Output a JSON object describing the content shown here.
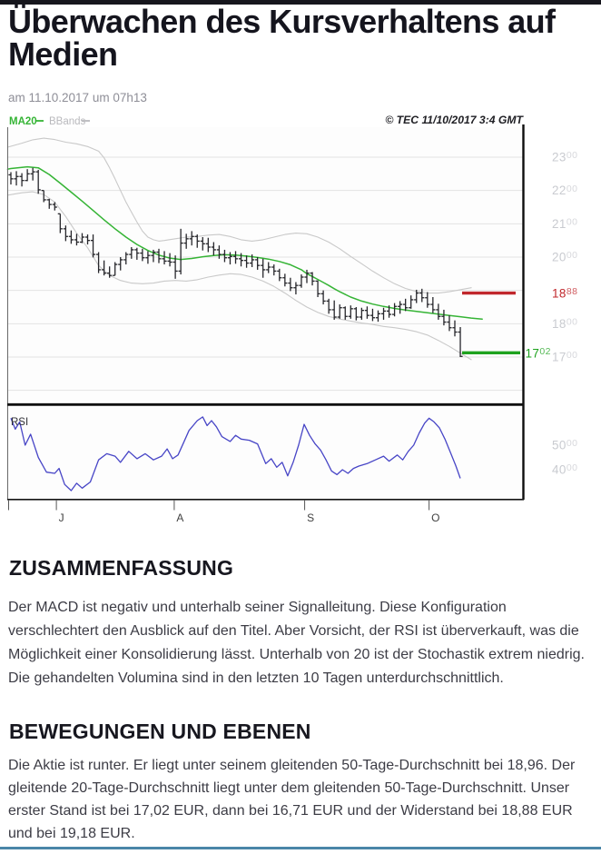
{
  "page": {
    "title": "Überwachen des Kursverhaltens auf Medien",
    "date_line": "am 11.10.2017 um 07h13",
    "top_bar_color": "#16161d",
    "bottom_rule_color": "#4a86a8"
  },
  "sections": [
    {
      "heading": "ZUSAMMENFASSUNG",
      "body": "Der MACD ist negativ und unterhalb seiner Signalleitung. Diese Konfiguration verschlechtert den Ausblick auf den Titel. Aber Vorsicht, der RSI ist überverkauft, was die Möglichkeit einer Konsolidierung lässt. Unterhalb von 20 ist der Stochastik extrem niedrig. Die gehandelten Volumina sind in den letzten 10 Tagen unterdurchschnittlich."
    },
    {
      "heading": "BEWEGUNGEN UND EBENEN",
      "body": "Die Aktie ist runter. Er liegt unter seinem gleitenden 50-Tage-Durchschnitt bei 18,96. Der gleitende 20-Tage-Durchschnitt liegt unter dem gleitenden 50-Tage-Durchschnitt. Unser erster Stand ist bei 17,02 EUR, dann bei 16,71 EUR und der Widerstand bei 18,88 EUR und bei 19,18 EUR."
    }
  ],
  "chart_data": {
    "type": "candlestick",
    "watermark": "© TEC 11/10/2017 3:4 GMT",
    "legend": [
      {
        "label": "MA20",
        "color": "#35b435"
      },
      {
        "label": "BBands",
        "color": "#b9b9bd"
      }
    ],
    "axis_note": "prices in EUR cents (1702 = 17,02 EUR)",
    "ylim": [
      1560,
      2425
    ],
    "gridlines": [
      2300,
      2200,
      2100,
      2000,
      1900,
      1800,
      1700,
      1600
    ],
    "price_labels": [
      2300,
      2200,
      2100,
      2000,
      1800,
      1700
    ],
    "price_label_color": "#c9cbd0",
    "bar_color": "#26262b",
    "band_color": "#c9c9c9",
    "grid_color": "#e2e2e2",
    "resistance": {
      "value": 1888,
      "label": "1888",
      "color": "#c0272c"
    },
    "support": {
      "value": 1702,
      "label": "1702",
      "color": "#1ea21e"
    },
    "x_ticks": [
      {
        "label": "J",
        "i": 8.3
      },
      {
        "label": "A",
        "i": 29.8
      },
      {
        "label": "S",
        "i": 53.6
      },
      {
        "label": "O",
        "i": 76.3
      }
    ],
    "bars_hlc": [
      [
        2255,
        2218,
        2235
      ],
      [
        2258,
        2215,
        2242
      ],
      [
        2252,
        2212,
        2230
      ],
      [
        2264,
        2228,
        2250
      ],
      [
        2268,
        2230,
        2256
      ],
      [
        2262,
        2190,
        2202
      ],
      [
        2200,
        2165,
        2172
      ],
      [
        2175,
        2145,
        2158
      ],
      [
        2165,
        2140,
        2150
      ],
      [
        2130,
        2072,
        2085
      ],
      [
        2095,
        2048,
        2062
      ],
      [
        2080,
        2040,
        2052
      ],
      [
        2070,
        2035,
        2045
      ],
      [
        2072,
        2042,
        2060
      ],
      [
        2068,
        2038,
        2050
      ],
      [
        2068,
        1999,
        2008
      ],
      [
        2015,
        1952,
        1962
      ],
      [
        1990,
        1945,
        1952
      ],
      [
        1972,
        1938,
        1945
      ],
      [
        1985,
        1945,
        1978
      ],
      [
        2000,
        1960,
        1992
      ],
      [
        2015,
        1978,
        2008
      ],
      [
        2030,
        1995,
        2022
      ],
      [
        2028,
        1992,
        2012
      ],
      [
        2025,
        1988,
        1998
      ],
      [
        2018,
        1980,
        2005
      ],
      [
        2022,
        1985,
        2015
      ],
      [
        2025,
        1982,
        1995
      ],
      [
        2018,
        1978,
        1988
      ],
      [
        2012,
        1972,
        1985
      ],
      [
        2005,
        1935,
        1958
      ],
      [
        2085,
        1948,
        2042
      ],
      [
        2070,
        2025,
        2055
      ],
      [
        2078,
        2035,
        2062
      ],
      [
        2068,
        2028,
        2048
      ],
      [
        2060,
        2020,
        2040
      ],
      [
        2058,
        2015,
        2030
      ],
      [
        2045,
        2005,
        2022
      ],
      [
        2035,
        1995,
        2008
      ],
      [
        2022,
        1985,
        1998
      ],
      [
        2015,
        1978,
        2002
      ],
      [
        2018,
        1980,
        1995
      ],
      [
        2012,
        1972,
        1990
      ],
      [
        2005,
        1968,
        1982
      ],
      [
        2008,
        1970,
        1992
      ],
      [
        2000,
        1962,
        1975
      ],
      [
        1995,
        1938,
        1962
      ],
      [
        1985,
        1952,
        1970
      ],
      [
        1978,
        1945,
        1958
      ],
      [
        1965,
        1928,
        1938
      ],
      [
        1950,
        1912,
        1922
      ],
      [
        1938,
        1898,
        1908
      ],
      [
        1925,
        1888,
        1915
      ],
      [
        1948,
        1908,
        1940
      ],
      [
        1962,
        1922,
        1952
      ],
      [
        1955,
        1915,
        1928
      ],
      [
        1930,
        1880,
        1890
      ],
      [
        1900,
        1858,
        1868
      ],
      [
        1875,
        1830,
        1842
      ],
      [
        1870,
        1812,
        1820
      ],
      [
        1858,
        1815,
        1848
      ],
      [
        1852,
        1812,
        1822
      ],
      [
        1855,
        1815,
        1845
      ],
      [
        1850,
        1810,
        1820
      ],
      [
        1848,
        1812,
        1840
      ],
      [
        1852,
        1815,
        1825
      ],
      [
        1845,
        1808,
        1818
      ],
      [
        1840,
        1806,
        1830
      ],
      [
        1848,
        1812,
        1838
      ],
      [
        1855,
        1818,
        1828
      ],
      [
        1862,
        1822,
        1852
      ],
      [
        1868,
        1830,
        1858
      ],
      [
        1875,
        1838,
        1848
      ],
      [
        1885,
        1845,
        1872
      ],
      [
        1902,
        1862,
        1892
      ],
      [
        1905,
        1865,
        1878
      ],
      [
        1895,
        1848,
        1858
      ],
      [
        1880,
        1832,
        1842
      ],
      [
        1860,
        1812,
        1822
      ],
      [
        1842,
        1795,
        1805
      ],
      [
        1825,
        1778,
        1788
      ],
      [
        1810,
        1762,
        1775
      ],
      [
        1790,
        1700,
        1702
      ]
    ],
    "ma20": [
      [
        -0.6,
        2264
      ],
      [
        0,
        2266
      ],
      [
        3,
        2271
      ],
      [
        5,
        2268
      ],
      [
        7,
        2248
      ],
      [
        9,
        2222
      ],
      [
        11,
        2195
      ],
      [
        13,
        2168
      ],
      [
        15,
        2140
      ],
      [
        17,
        2112
      ],
      [
        19,
        2085
      ],
      [
        21,
        2060
      ],
      [
        23,
        2038
      ],
      [
        25,
        2020
      ],
      [
        27,
        2006
      ],
      [
        29,
        1997
      ],
      [
        31,
        1993
      ],
      [
        33,
        1996
      ],
      [
        35,
        2001
      ],
      [
        37,
        2005
      ],
      [
        39,
        2007
      ],
      [
        41,
        2006
      ],
      [
        43,
        2003
      ],
      [
        45,
        1999
      ],
      [
        47,
        1994
      ],
      [
        49,
        1987
      ],
      [
        51,
        1977
      ],
      [
        53,
        1962
      ],
      [
        54,
        1950
      ],
      [
        55,
        1942
      ],
      [
        56,
        1933
      ],
      [
        57,
        1924
      ],
      [
        58,
        1915
      ],
      [
        59,
        1905
      ],
      [
        60,
        1896
      ],
      [
        61,
        1888
      ],
      [
        62,
        1880
      ],
      [
        64,
        1868
      ],
      [
        66,
        1859
      ],
      [
        68,
        1852
      ],
      [
        70,
        1846
      ],
      [
        72,
        1841
      ],
      [
        74,
        1837
      ],
      [
        76,
        1833
      ],
      [
        78,
        1829
      ],
      [
        80,
        1825
      ],
      [
        82,
        1821
      ],
      [
        84,
        1817
      ],
      [
        86,
        1814
      ]
    ],
    "bb_upper": [
      [
        -0.6,
        2330
      ],
      [
        2,
        2342
      ],
      [
        4,
        2352
      ],
      [
        6,
        2357
      ],
      [
        8,
        2353
      ],
      [
        10,
        2345
      ],
      [
        12,
        2340
      ],
      [
        14,
        2332
      ],
      [
        16,
        2318
      ],
      [
        17,
        2298
      ],
      [
        18,
        2268
      ],
      [
        19,
        2235
      ],
      [
        20,
        2200
      ],
      [
        21,
        2165
      ],
      [
        22,
        2135
      ],
      [
        23,
        2105
      ],
      [
        24,
        2078
      ],
      [
        25,
        2060
      ],
      [
        26,
        2052
      ],
      [
        27,
        2048
      ],
      [
        28,
        2050
      ],
      [
        30,
        2055
      ],
      [
        32,
        2060
      ],
      [
        34,
        2062
      ],
      [
        36,
        2066
      ],
      [
        38,
        2068
      ],
      [
        40,
        2062
      ],
      [
        42,
        2052
      ],
      [
        44,
        2048
      ],
      [
        46,
        2052
      ],
      [
        48,
        2060
      ],
      [
        50,
        2068
      ],
      [
        52,
        2072
      ],
      [
        54,
        2070
      ],
      [
        56,
        2060
      ],
      [
        58,
        2045
      ],
      [
        60,
        2025
      ],
      [
        62,
        2002
      ],
      [
        64,
        1980
      ],
      [
        66,
        1958
      ],
      [
        68,
        1938
      ],
      [
        70,
        1920
      ],
      [
        72,
        1906
      ],
      [
        74,
        1897
      ],
      [
        76,
        1892
      ],
      [
        78,
        1892
      ],
      [
        80,
        1896
      ],
      [
        82,
        1902
      ],
      [
        84,
        1908
      ]
    ],
    "bb_lower": [
      [
        -0.6,
        2186
      ],
      [
        2,
        2193
      ],
      [
        4,
        2196
      ],
      [
        6,
        2188
      ],
      [
        8,
        2165
      ],
      [
        10,
        2122
      ],
      [
        12,
        2072
      ],
      [
        14,
        2028
      ],
      [
        16,
        1975
      ],
      [
        18,
        1945
      ],
      [
        20,
        1930
      ],
      [
        22,
        1922
      ],
      [
        24,
        1920
      ],
      [
        26,
        1922
      ],
      [
        28,
        1928
      ],
      [
        30,
        1930
      ],
      [
        32,
        1928
      ],
      [
        34,
        1932
      ],
      [
        36,
        1940
      ],
      [
        38,
        1946
      ],
      [
        40,
        1950
      ],
      [
        42,
        1948
      ],
      [
        44,
        1940
      ],
      [
        46,
        1928
      ],
      [
        48,
        1912
      ],
      [
        50,
        1892
      ],
      [
        52,
        1870
      ],
      [
        54,
        1850
      ],
      [
        56,
        1834
      ],
      [
        58,
        1822
      ],
      [
        60,
        1814
      ],
      [
        62,
        1808
      ],
      [
        64,
        1802
      ],
      [
        66,
        1798
      ],
      [
        68,
        1792
      ],
      [
        70,
        1788
      ],
      [
        72,
        1783
      ],
      [
        74,
        1776
      ],
      [
        76,
        1766
      ],
      [
        78,
        1750
      ],
      [
        80,
        1732
      ],
      [
        82,
        1712
      ],
      [
        84,
        1692
      ]
    ],
    "rsi": {
      "label": "RSI",
      "color": "#4745c6",
      "axis_labels": [
        50,
        40
      ],
      "points": [
        [
          0,
          61
        ],
        [
          0.8,
          56.5
        ],
        [
          1.6,
          59.5
        ],
        [
          2.6,
          50
        ],
        [
          3.6,
          54.5
        ],
        [
          5,
          45
        ],
        [
          6.5,
          39
        ],
        [
          8,
          38.5
        ],
        [
          8.8,
          40.5
        ],
        [
          9.8,
          34
        ],
        [
          11,
          31.5
        ],
        [
          12,
          34.5
        ],
        [
          13,
          32.5
        ],
        [
          14.5,
          35
        ],
        [
          16,
          44
        ],
        [
          17.5,
          46.5
        ],
        [
          19,
          45.5
        ],
        [
          20,
          43
        ],
        [
          21.5,
          47.5
        ],
        [
          23,
          44.5
        ],
        [
          24.5,
          46.5
        ],
        [
          26,
          44
        ],
        [
          27.5,
          45.5
        ],
        [
          28.5,
          48.5
        ],
        [
          29.5,
          44.5
        ],
        [
          30.5,
          46
        ],
        [
          31.5,
          51
        ],
        [
          32.5,
          56
        ],
        [
          34,
          60
        ],
        [
          35,
          61.5
        ],
        [
          35.8,
          58
        ],
        [
          36.6,
          60
        ],
        [
          37.5,
          57.5
        ],
        [
          38.5,
          53.5
        ],
        [
          40,
          51.5
        ],
        [
          41,
          54
        ],
        [
          42,
          52.5
        ],
        [
          43.5,
          52
        ],
        [
          45,
          50.5
        ],
        [
          46.5,
          42.5
        ],
        [
          47.5,
          44.5
        ],
        [
          48.5,
          41
        ],
        [
          49.5,
          43
        ],
        [
          50.5,
          37.5
        ],
        [
          51.5,
          43
        ],
        [
          52.5,
          50
        ],
        [
          53.5,
          58.5
        ],
        [
          54.5,
          54
        ],
        [
          55.5,
          50.5
        ],
        [
          56.5,
          48
        ],
        [
          57.5,
          44
        ],
        [
          58.5,
          39.5
        ],
        [
          59.5,
          38
        ],
        [
          60.5,
          40
        ],
        [
          61.5,
          38.5
        ],
        [
          62.5,
          40.5
        ],
        [
          63.5,
          41.5
        ],
        [
          65,
          42.5
        ],
        [
          66.5,
          44
        ],
        [
          68,
          45.5
        ],
        [
          69,
          43.5
        ],
        [
          70.5,
          46
        ],
        [
          71.5,
          44
        ],
        [
          72.5,
          47.5
        ],
        [
          73.5,
          50
        ],
        [
          74.5,
          55
        ],
        [
          75.5,
          59
        ],
        [
          76.3,
          61
        ],
        [
          77.2,
          59.5
        ],
        [
          78.2,
          57
        ],
        [
          79.2,
          52.5
        ],
        [
          80.2,
          47
        ],
        [
          81.2,
          41.5
        ],
        [
          82,
          36.5
        ]
      ]
    }
  }
}
